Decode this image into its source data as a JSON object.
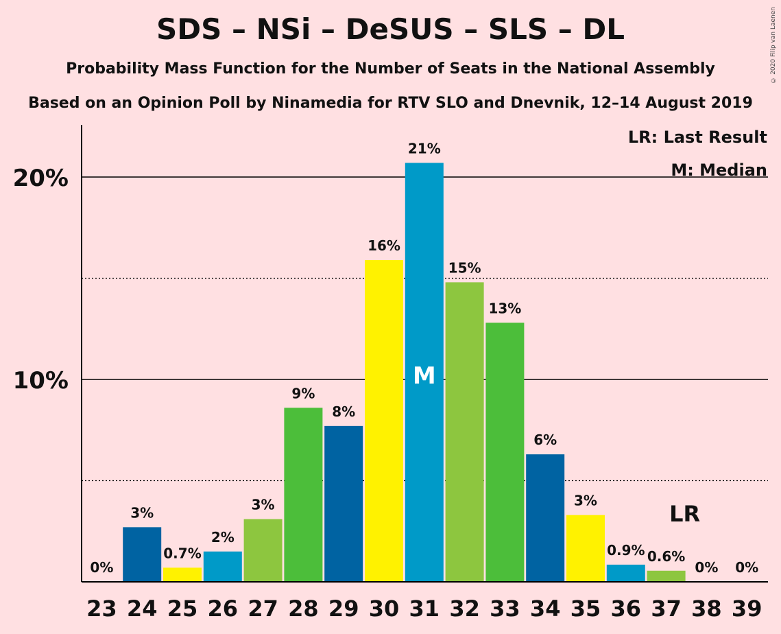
{
  "title": "SDS – NSi – DeSUS – SLS – DL",
  "subtitle": "Probability Mass Function for the Number of Seats in the National Assembly",
  "source": "Based on an Opinion Poll by Ninamedia for RTV SLO and Dnevnik, 12–14 August 2019",
  "copyright": "© 2020 Filip van Laenen",
  "legend": {
    "last_result": "LR: Last Result",
    "median": "M: Median"
  },
  "colors": {
    "background": "#FFE0E2",
    "palette": [
      "#0063A2",
      "#FFF200",
      "#009AC8",
      "#8DC63F",
      "#4CBE3A"
    ]
  },
  "chart_data": {
    "type": "bar",
    "categories": [
      "23",
      "24",
      "25",
      "26",
      "27",
      "28",
      "29",
      "30",
      "31",
      "32",
      "33",
      "34",
      "35",
      "36",
      "37",
      "38",
      "39"
    ],
    "values": [
      0,
      2.7,
      0.7,
      1.5,
      3.1,
      8.6,
      7.7,
      15.9,
      20.7,
      14.8,
      12.8,
      6.3,
      3.3,
      0.85,
      0.55,
      0,
      0
    ],
    "labels": [
      "0%",
      "3%",
      "0.7%",
      "2%",
      "3%",
      "9%",
      "8%",
      "16%",
      "21%",
      "15%",
      "13%",
      "6%",
      "3%",
      "0.9%",
      "0.6%",
      "0%",
      "0%"
    ],
    "colors": [
      "#0063A2",
      "#0063A2",
      "#FFF200",
      "#009AC8",
      "#8DC63F",
      "#4CBE3A",
      "#0063A2",
      "#FFF200",
      "#009AC8",
      "#8DC63F",
      "#4CBE3A",
      "#0063A2",
      "#FFF200",
      "#009AC8",
      "#8DC63F",
      "#4CBE3A",
      "#0063A2"
    ],
    "ylim": [
      0,
      22.5
    ],
    "yticks": [
      {
        "value": 10,
        "label": "10%"
      },
      {
        "value": 20,
        "label": "20%"
      }
    ],
    "minor_gridlines": [
      5,
      15
    ],
    "median_category": "31",
    "median_marker": "M",
    "last_result_category": "37",
    "last_result_marker": "LR"
  }
}
